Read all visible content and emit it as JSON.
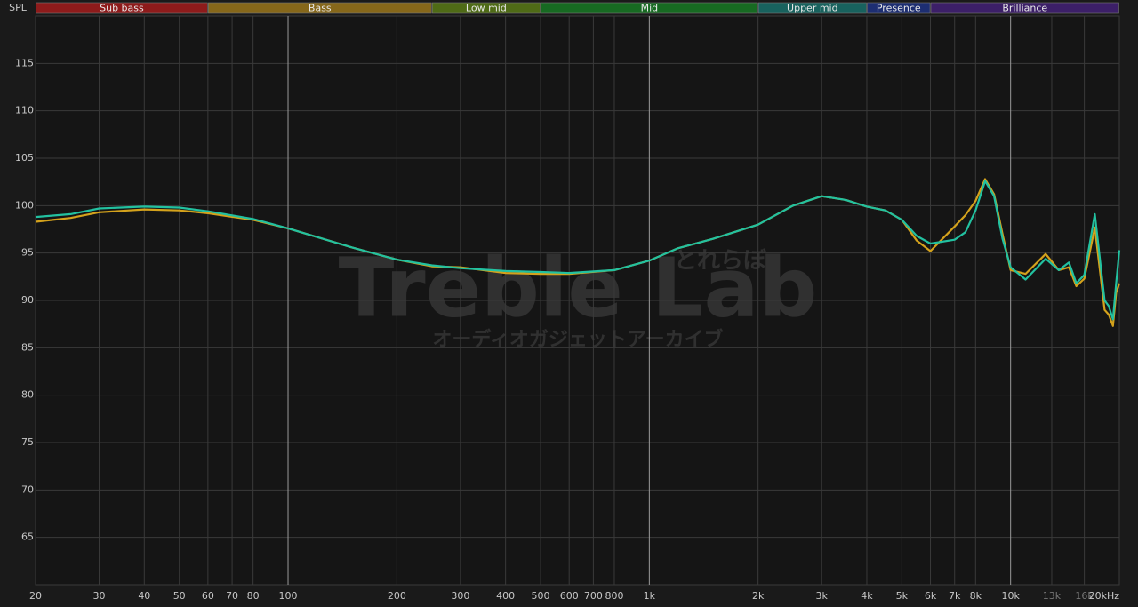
{
  "chart_data": {
    "type": "line",
    "y_label": "SPL",
    "watermark": {
      "title": "Treble Lab",
      "kana": "とれらぼ",
      "subtitle": "オーディオガジェットアーカイブ"
    },
    "xscale": "log",
    "xlim": [
      20,
      20000
    ],
    "ylim": [
      60,
      120
    ],
    "xticks": [
      20,
      30,
      40,
      50,
      60,
      70,
      80,
      100,
      200,
      300,
      400,
      500,
      600,
      700,
      800,
      {
        "value": 1000,
        "label": "1k"
      },
      {
        "value": 2000,
        "label": "2k"
      },
      {
        "value": 3000,
        "label": "3k"
      },
      {
        "value": 4000,
        "label": "4k"
      },
      {
        "value": 5000,
        "label": "5k"
      },
      {
        "value": 6000,
        "label": "6k"
      },
      {
        "value": 7000,
        "label": "7k"
      },
      {
        "value": 8000,
        "label": "8k"
      },
      {
        "value": 10000,
        "label": "10k"
      },
      {
        "value": 13000,
        "label": "13k",
        "dim": true
      },
      {
        "value": 16000,
        "label": "16k",
        "dim": true
      },
      {
        "value": 20000,
        "label": "20kHz"
      }
    ],
    "yticks": [
      65,
      70,
      75,
      80,
      85,
      90,
      95,
      100,
      105,
      110,
      115
    ],
    "grid": true,
    "bands": [
      {
        "label": "Sub bass",
        "from": 20,
        "to": 60,
        "color": "#8e1b1b"
      },
      {
        "label": "Bass",
        "from": 60,
        "to": 250,
        "color": "#86671a"
      },
      {
        "label": "Low mid",
        "from": 250,
        "to": 500,
        "color": "#4f6b16"
      },
      {
        "label": "Mid",
        "from": 500,
        "to": 2000,
        "color": "#176a22"
      },
      {
        "label": "Upper mid",
        "from": 2000,
        "to": 4000,
        "color": "#18625e"
      },
      {
        "label": "Presence",
        "from": 4000,
        "to": 6000,
        "color": "#1d2e72"
      },
      {
        "label": "Brilliance",
        "from": 6000,
        "to": 20000,
        "color": "#3c1f68"
      }
    ],
    "x": [
      20,
      25,
      30,
      40,
      50,
      60,
      80,
      100,
      150,
      200,
      250,
      300,
      400,
      500,
      600,
      800,
      1000,
      1200,
      1500,
      2000,
      2500,
      3000,
      3500,
      4000,
      4500,
      5000,
      5500,
      6000,
      7000,
      7500,
      8000,
      8500,
      9000,
      9500,
      10000,
      11000,
      12500,
      13600,
      14500,
      15200,
      16000,
      17100,
      18200,
      18700,
      19200,
      19600,
      20000
    ],
    "series": [
      {
        "color": "#d4a21c",
        "values": [
          98.3,
          98.7,
          99.3,
          99.6,
          99.5,
          99.2,
          98.5,
          97.6,
          95.6,
          94.3,
          93.6,
          93.5,
          92.9,
          92.8,
          92.8,
          93.2,
          94.2,
          95.5,
          96.5,
          98.0,
          100.0,
          101.0,
          100.6,
          99.9,
          99.5,
          98.5,
          96.3,
          95.2,
          97.8,
          99.0,
          100.5,
          102.8,
          101.2,
          97.0,
          93.2,
          92.8,
          94.9,
          93.2,
          93.5,
          91.5,
          92.3,
          97.7,
          89.0,
          88.5,
          87.3,
          90.8,
          91.8
        ]
      },
      {
        "color": "#22c1a0",
        "values": [
          98.8,
          99.1,
          99.7,
          99.9,
          99.8,
          99.4,
          98.6,
          97.6,
          95.6,
          94.3,
          93.7,
          93.4,
          93.1,
          93.0,
          92.9,
          93.2,
          94.2,
          95.5,
          96.5,
          98.0,
          100.0,
          101.0,
          100.6,
          99.9,
          99.5,
          98.5,
          96.8,
          96.0,
          96.4,
          97.2,
          99.5,
          102.6,
          101.0,
          96.5,
          93.5,
          92.2,
          94.4,
          93.2,
          94.0,
          91.8,
          92.7,
          99.1,
          90.0,
          89.4,
          88.0,
          91.8,
          95.3
        ]
      }
    ]
  }
}
